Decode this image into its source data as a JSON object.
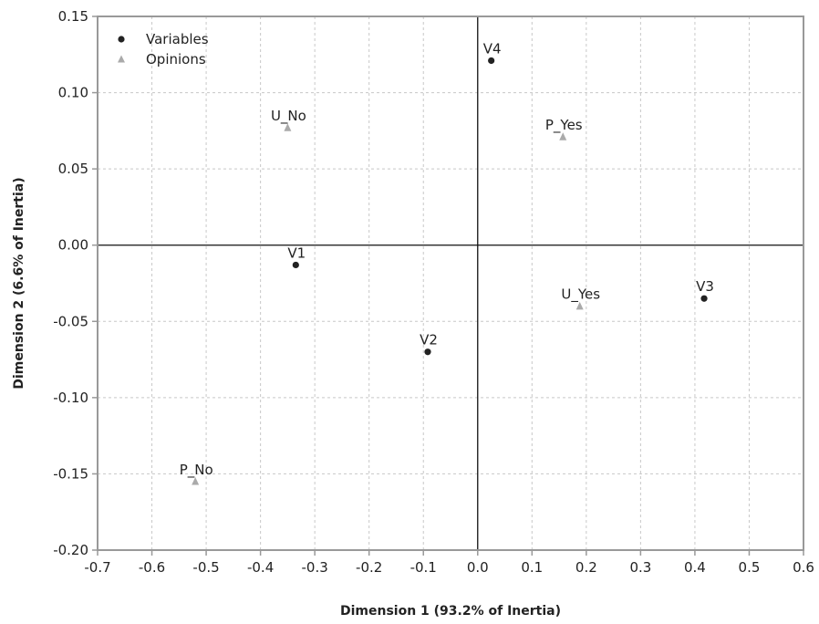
{
  "chart_data": {
    "type": "scatter",
    "title": "",
    "xlabel": "Dimension 1 (93.2% of Inertia)",
    "ylabel": "Dimension 2 (6.6% of Inertia)",
    "xlim": [
      -0.7,
      0.6
    ],
    "ylim": [
      -0.2,
      0.15
    ],
    "xticks": [
      -0.7,
      -0.6,
      -0.5,
      -0.4,
      -0.3,
      -0.2,
      -0.1,
      0.0,
      0.1,
      0.2,
      0.3,
      0.4,
      0.5,
      0.6
    ],
    "xtick_labels": [
      "-0.7",
      "-0.6",
      "-0.5",
      "-0.4",
      "-0.3",
      "-0.2",
      "-0.1",
      "0.0",
      "0.1",
      "0.2",
      "0.3",
      "0.4",
      "0.5",
      "0.6"
    ],
    "yticks": [
      0.15,
      0.1,
      0.05,
      0.0,
      -0.05,
      -0.1,
      -0.15,
      -0.2
    ],
    "ytick_labels": [
      "0.15",
      "0.10",
      "0.05",
      "0.00",
      "-0.05",
      "-0.10",
      "-0.15",
      "-0.20"
    ],
    "grid": true,
    "legend_position": "top-left",
    "series": [
      {
        "name": "Variables",
        "marker": "circle",
        "color": "#222222",
        "points": [
          {
            "label": "V1",
            "x": -0.335,
            "y": -0.013
          },
          {
            "label": "V2",
            "x": -0.092,
            "y": -0.07
          },
          {
            "label": "V3",
            "x": 0.417,
            "y": -0.035
          },
          {
            "label": "V4",
            "x": 0.025,
            "y": 0.121
          }
        ]
      },
      {
        "name": "Opinions",
        "marker": "triangle",
        "color": "#aaaaaa",
        "points": [
          {
            "label": "U_No",
            "x": -0.35,
            "y": 0.077
          },
          {
            "label": "P_Yes",
            "x": 0.157,
            "y": 0.071
          },
          {
            "label": "U_Yes",
            "x": 0.188,
            "y": -0.04
          },
          {
            "label": "P_No",
            "x": -0.52,
            "y": -0.155
          }
        ]
      }
    ]
  }
}
